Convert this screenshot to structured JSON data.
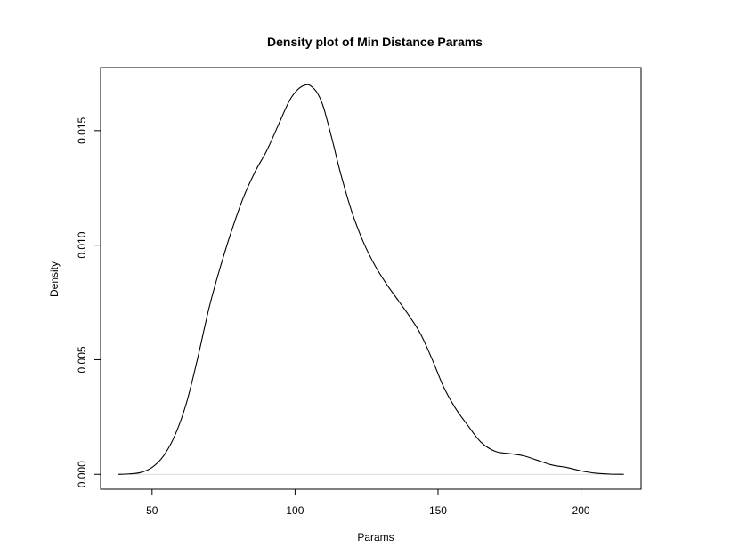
{
  "chart_data": {
    "type": "line",
    "title": "Density plot of Min Distance Params",
    "xlabel": "Params",
    "ylabel": "Density",
    "xlim": [
      32,
      221
    ],
    "ylim": [
      -0.00065,
      0.01775
    ],
    "x_ticks": [
      {
        "value": 50,
        "label": "50"
      },
      {
        "value": 100,
        "label": "100"
      },
      {
        "value": 150,
        "label": "150"
      },
      {
        "value": 200,
        "label": "200"
      }
    ],
    "y_ticks": [
      {
        "value": 0.0,
        "label": "0.000"
      },
      {
        "value": 0.005,
        "label": "0.005"
      },
      {
        "value": 0.01,
        "label": "0.010"
      },
      {
        "value": 0.015,
        "label": "0.015"
      }
    ],
    "grid": false,
    "baseline": 0,
    "series": [
      {
        "color": "#000000",
        "x": [
          38,
          42,
          46,
          50,
          54,
          58,
          62,
          66,
          70,
          74,
          78,
          82,
          86,
          90,
          94,
          98,
          101,
          104,
          106,
          108,
          110,
          113,
          116,
          120,
          124,
          128,
          132,
          136,
          140,
          144,
          148,
          152,
          156,
          160,
          165,
          170,
          175,
          180,
          185,
          190,
          195,
          200,
          205,
          210,
          215
        ],
        "y": [
          0.0,
          2e-05,
          8e-05,
          0.0003,
          0.0008,
          0.0017,
          0.0031,
          0.0051,
          0.0073,
          0.0091,
          0.0107,
          0.0121,
          0.0132,
          0.0141,
          0.0152,
          0.0163,
          0.0168,
          0.017,
          0.0169,
          0.0166,
          0.016,
          0.0146,
          0.0131,
          0.0114,
          0.0101,
          0.0091,
          0.0083,
          0.0076,
          0.0069,
          0.0061,
          0.005,
          0.0038,
          0.0029,
          0.0022,
          0.0014,
          0.001,
          0.0009,
          0.0008,
          0.0006,
          0.0004,
          0.0003,
          0.00015,
          5e-05,
          1e-05,
          0.0
        ]
      }
    ]
  }
}
